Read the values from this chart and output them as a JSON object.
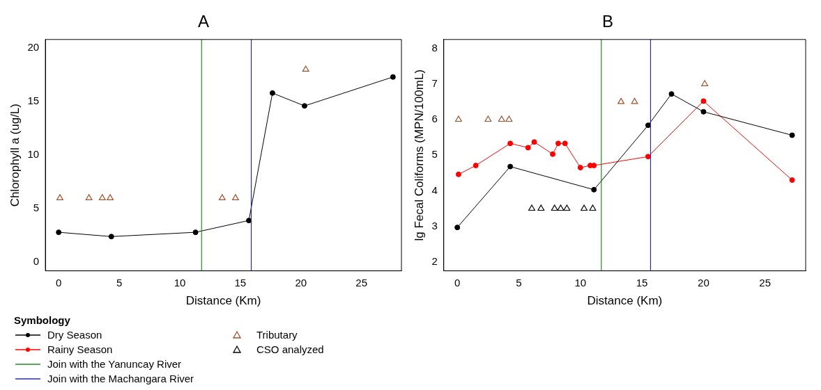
{
  "chart_data": [
    {
      "type": "line",
      "title": "A",
      "xlabel": "Distance (Km)",
      "ylabel": "Chlorophyll a (ug/L)",
      "xlim": [
        -1.1,
        28.3
      ],
      "ylim": [
        -0.8,
        20.8
      ],
      "xticks": [
        0,
        5,
        10,
        15,
        20,
        25
      ],
      "yticks": [
        0,
        5,
        10,
        15,
        20
      ],
      "grid": false,
      "legend": false,
      "series": [
        {
          "type": "line",
          "color": "#000000",
          "marker": "circle",
          "x": [
            0,
            4.35,
            11.3,
            15.7,
            17.65,
            20.3,
            27.6
          ],
          "values": [
            2.8,
            2.4,
            2.8,
            3.9,
            15.8,
            14.6,
            17.3
          ]
        },
        {
          "type": "scatter",
          "color": "#a0522d",
          "marker": "triangle",
          "x": [
            0.1,
            2.5,
            3.6,
            4.25,
            13.5,
            14.6,
            20.4
          ],
          "values": [
            6,
            6,
            6,
            6,
            6,
            6,
            18
          ]
        }
      ],
      "ref_lines": [
        {
          "axis": "x",
          "value": 11.8,
          "color": "#228b22"
        },
        {
          "axis": "x",
          "value": 15.9,
          "color": "#2b2bb0"
        }
      ]
    },
    {
      "type": "line",
      "title": "B",
      "xlabel": "Distance (Km)",
      "ylabel": "lg Fecal Coliforms (MPN/100mL)",
      "xlim": [
        -1.1,
        28.3
      ],
      "ylim": [
        1.75,
        8.25
      ],
      "xticks": [
        0,
        5,
        10,
        15,
        20,
        25
      ],
      "yticks": [
        2,
        3,
        4,
        5,
        6,
        7,
        8
      ],
      "grid": false,
      "legend": "bottom",
      "legend_title": "Symbology",
      "series": [
        {
          "type": "line",
          "name": "Dry Season",
          "color": "#000000",
          "marker": "circle",
          "x": [
            0,
            4.3,
            11.1,
            15.5,
            17.4,
            20,
            27.2
          ],
          "values": [
            2.97,
            4.68,
            4.03,
            5.84,
            6.72,
            6.22,
            5.56
          ]
        },
        {
          "type": "line",
          "name": "Rainy Season",
          "color": "#ff0000",
          "marker": "circle",
          "x": [
            0.1,
            1.5,
            4.3,
            5.75,
            6.25,
            7.75,
            8.2,
            8.75,
            10,
            10.8,
            11.1,
            15.5,
            20,
            27.2
          ],
          "values": [
            4.46,
            4.71,
            5.33,
            5.21,
            5.37,
            5.03,
            5.33,
            5.33,
            4.65,
            4.71,
            4.71,
            4.96,
            6.52,
            4.3
          ]
        },
        {
          "type": "scatter",
          "name": "Tributary",
          "color": "#a0522d",
          "marker": "triangle",
          "x": [
            0.1,
            2.5,
            3.6,
            4.2,
            13.3,
            14.4,
            20.1
          ],
          "values": [
            6,
            6,
            6,
            6,
            6.5,
            6.5,
            7
          ]
        },
        {
          "type": "scatter",
          "name": "CSO analyzed",
          "color": "#000000",
          "marker": "triangle",
          "x": [
            6.05,
            6.8,
            7.9,
            8.4,
            8.9,
            10.3,
            11
          ],
          "values": [
            3.5,
            3.5,
            3.5,
            3.5,
            3.5,
            3.5,
            3.5
          ]
        }
      ],
      "ref_lines": [
        {
          "axis": "x",
          "value": 11.7,
          "label": "Join with the Yanuncay River",
          "color": "#228b22"
        },
        {
          "axis": "x",
          "value": 15.7,
          "label": "Join with the Machangara River",
          "color": "#2b2bb0"
        }
      ]
    }
  ]
}
